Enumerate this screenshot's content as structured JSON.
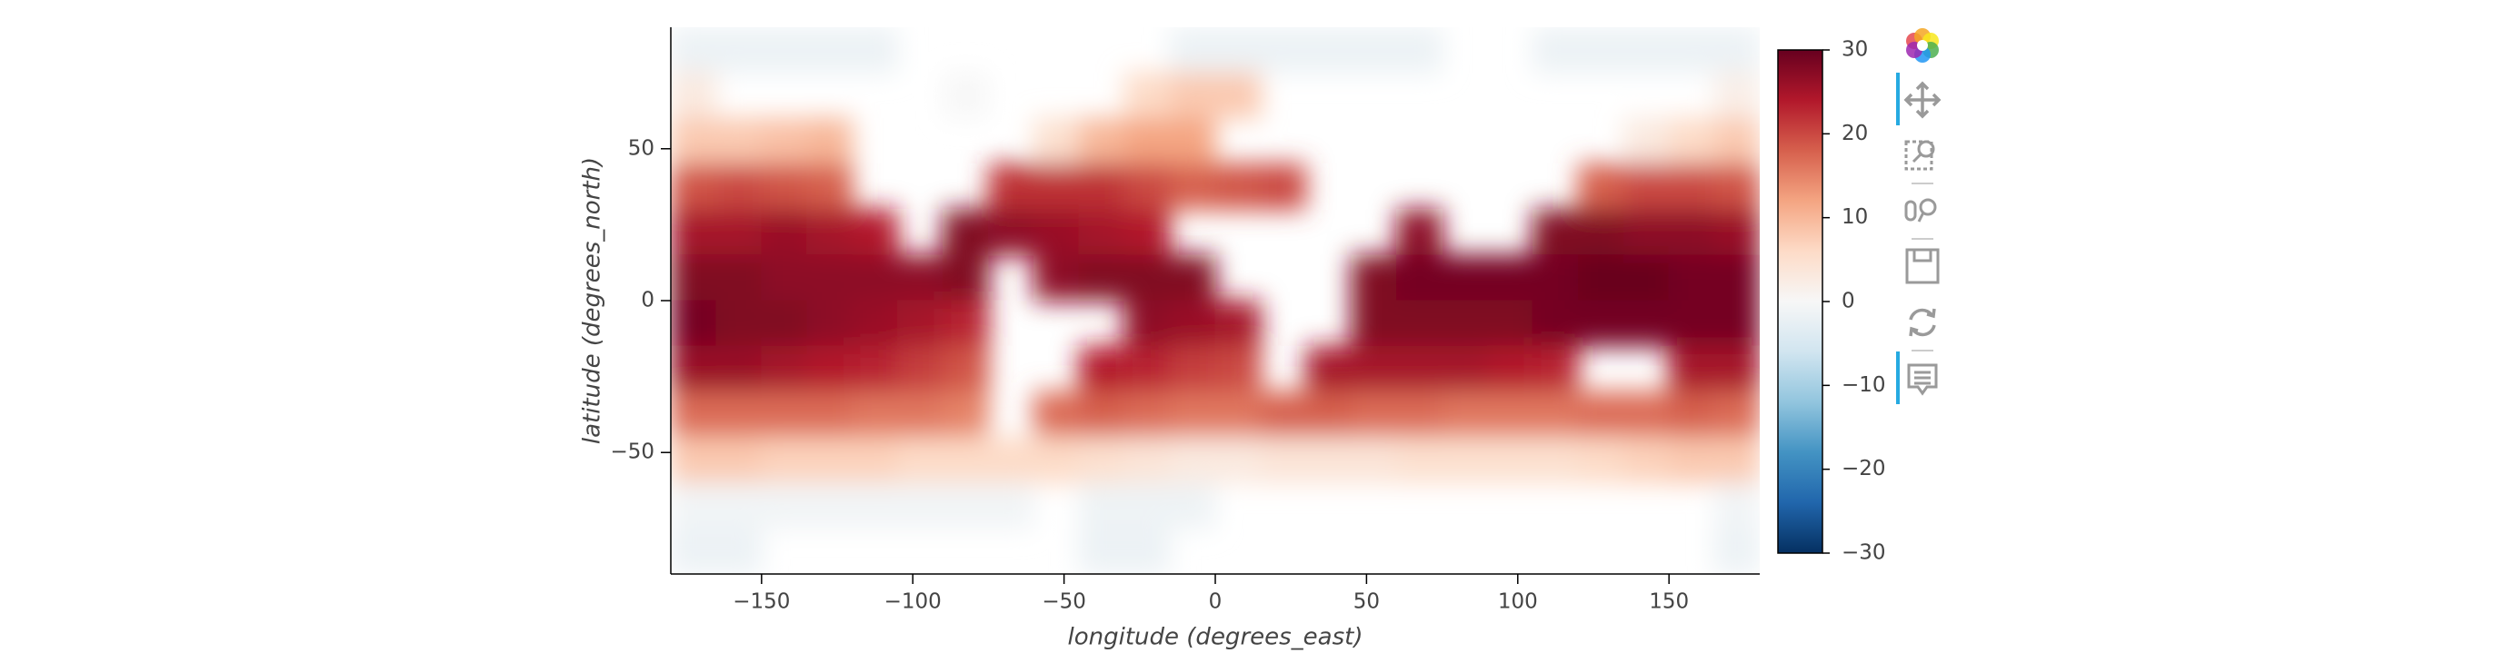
{
  "chart_data": {
    "type": "heatmap",
    "xlabel": "longitude (degrees_east)",
    "ylabel": "latitude (degrees_north)",
    "x": [
      -172.5,
      -157.5,
      -142.5,
      -127.5,
      -112.5,
      -97.5,
      -82.5,
      -67.5,
      -52.5,
      -37.5,
      -22.5,
      -7.5,
      7.5,
      22.5,
      37.5,
      52.5,
      67.5,
      82.5,
      97.5,
      112.5,
      127.5,
      142.5,
      157.5,
      172.5
    ],
    "y": [
      82.5,
      67.5,
      52.5,
      37.5,
      22.5,
      7.5,
      -7.5,
      -22.5,
      -37.5,
      -52.5,
      -67.5,
      -82.5
    ],
    "values": [
      [
        -1.8,
        -1.8,
        -1.8,
        -1.8,
        -1.8,
        null,
        null,
        null,
        null,
        null,
        null,
        -1.8,
        -1.8,
        -1.8,
        -1.8,
        -1.8,
        -1.8,
        null,
        null,
        -1.8,
        -1.8,
        -1.8,
        -1.8,
        -1.8
      ],
      [
        3,
        null,
        null,
        null,
        null,
        null,
        0,
        null,
        null,
        null,
        6,
        8,
        8,
        null,
        null,
        null,
        null,
        null,
        null,
        null,
        null,
        null,
        null,
        2
      ],
      [
        8,
        8,
        9,
        10,
        null,
        null,
        null,
        null,
        5,
        10,
        12,
        12,
        null,
        null,
        null,
        null,
        null,
        null,
        null,
        null,
        null,
        3,
        6,
        8
      ],
      [
        19,
        20,
        19,
        18,
        null,
        null,
        null,
        22,
        22,
        22,
        20,
        18,
        19,
        20,
        null,
        null,
        null,
        null,
        null,
        null,
        18,
        20,
        20,
        19
      ],
      [
        25,
        25,
        26,
        25,
        24,
        null,
        28,
        27,
        26,
        25,
        24,
        null,
        null,
        null,
        null,
        null,
        27,
        null,
        null,
        28,
        28,
        27,
        27,
        26
      ],
      [
        28,
        28,
        27,
        27,
        27,
        27,
        28,
        null,
        27,
        28,
        28,
        28,
        null,
        null,
        null,
        28,
        29,
        29,
        29,
        29,
        30,
        30,
        29,
        29
      ],
      [
        29,
        28,
        28,
        27,
        26,
        25,
        23,
        null,
        null,
        null,
        27,
        26,
        25,
        null,
        null,
        28,
        28,
        28,
        28,
        29,
        29,
        29,
        29,
        29
      ],
      [
        26,
        26,
        25,
        24,
        23,
        21,
        19,
        null,
        null,
        24,
        23,
        21,
        20,
        null,
        25,
        25,
        25,
        25,
        24,
        23,
        null,
        null,
        25,
        25
      ],
      [
        17,
        17,
        17,
        17,
        16,
        16,
        15,
        null,
        17,
        18,
        17,
        16,
        16,
        18,
        18,
        17,
        17,
        16,
        16,
        16,
        17,
        17,
        18,
        17
      ],
      [
        8,
        8,
        7,
        7,
        7,
        6,
        6,
        6,
        6,
        5,
        4,
        3,
        3,
        4,
        4,
        4,
        5,
        5,
        5,
        5,
        6,
        7,
        8,
        8
      ],
      [
        -1,
        -1,
        -1,
        -1,
        -1,
        -1,
        -1,
        -1,
        null,
        -1.5,
        -1.5,
        -1.5,
        null,
        null,
        null,
        null,
        null,
        null,
        null,
        null,
        null,
        null,
        null,
        -1
      ],
      [
        -1.8,
        -1.8,
        null,
        null,
        null,
        null,
        null,
        null,
        null,
        -1.8,
        -1.8,
        null,
        null,
        null,
        null,
        null,
        null,
        null,
        null,
        null,
        null,
        null,
        null,
        -1.8
      ]
    ],
    "xlim": [
      -180,
      180
    ],
    "ylim": [
      -90,
      90
    ],
    "xticks": [
      {
        "value": -150,
        "label": "−150"
      },
      {
        "value": -100,
        "label": "−100"
      },
      {
        "value": -50,
        "label": "−50"
      },
      0,
      50,
      100,
      150
    ],
    "yticks": [
      {
        "value": -50,
        "label": "−50"
      },
      0,
      50
    ],
    "clim": [
      -30,
      30
    ],
    "cticks": [
      {
        "value": -30,
        "label": "−30"
      },
      {
        "value": -20,
        "label": "−20"
      },
      {
        "value": -10,
        "label": "−10"
      },
      0,
      10,
      20,
      30
    ],
    "colormap": [
      "#053061",
      "#2166ac",
      "#4393c3",
      "#92c5de",
      "#d1e5f0",
      "#f7f7f7",
      "#fddbc7",
      "#f4a582",
      "#d6604d",
      "#b2182b",
      "#67001f"
    ]
  }
}
